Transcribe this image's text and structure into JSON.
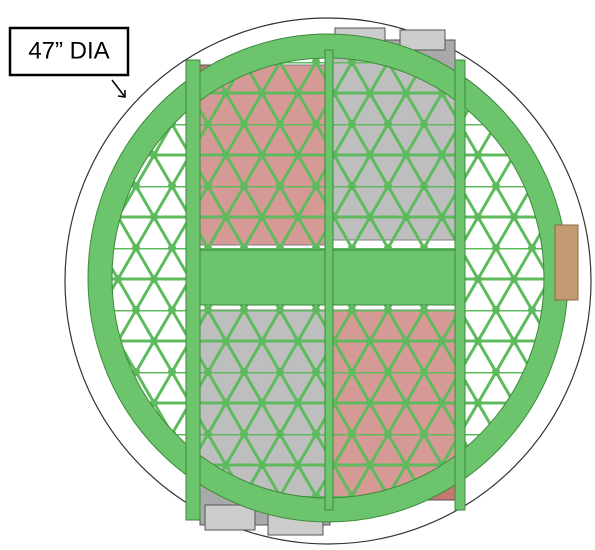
{
  "label": "47” DIA"
}
